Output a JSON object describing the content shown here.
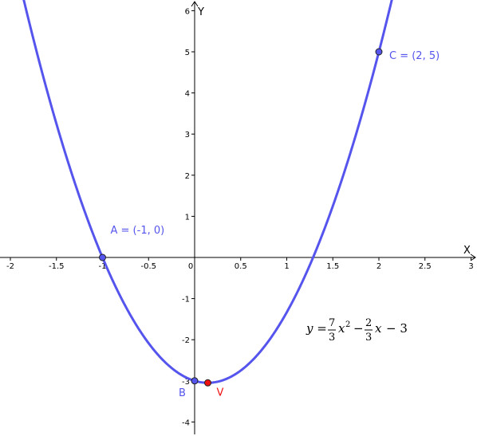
{
  "chart_data": {
    "type": "line",
    "xlabel": "X",
    "ylabel": "Y",
    "xlim": [
      -2.2,
      3.0
    ],
    "ylim": [
      -4.3,
      6.2
    ],
    "x_ticks": [
      -2,
      -1.5,
      -1,
      -0.5,
      0,
      0.5,
      1,
      1.5,
      2,
      2.5,
      3
    ],
    "x_tick_labels": [
      "-2",
      "-1.5",
      "-1",
      "-0.5",
      "0",
      "0.5",
      "1",
      "1.5",
      "2",
      "2.5",
      "3"
    ],
    "y_ticks": [
      -4,
      -3,
      -2,
      -1,
      1,
      2,
      3,
      4,
      5,
      6
    ],
    "y_tick_labels": [
      "-4",
      "-3",
      "-2",
      "-1",
      "1",
      "2",
      "3",
      "4",
      "5",
      "6"
    ],
    "grid": false,
    "curve": {
      "equation": "y = 7/3 x² − 2/3 x − 3",
      "a": 2.3333,
      "b": -0.6667,
      "c": -3,
      "color": "#5555ee"
    },
    "points": [
      {
        "label": "A = (-1, 0)",
        "x": -1,
        "y": 0,
        "color": "#5555ee"
      },
      {
        "label": "B",
        "x": 0,
        "y": -3,
        "color": "#5555ee"
      },
      {
        "label": "C = (2, 5)",
        "x": 2,
        "y": 5,
        "color": "#5555ee"
      },
      {
        "label": "V",
        "x": 0.1429,
        "y": -3.0476,
        "color": "#ee1111"
      }
    ],
    "formula_parts": {
      "lhs": "y =",
      "frac1_num": "7",
      "frac1_den": "3",
      "x1": "x",
      "exp": "2",
      "minus1": "−",
      "frac2_num": "2",
      "frac2_den": "3",
      "x2": "x",
      "tail": "− 3"
    }
  }
}
